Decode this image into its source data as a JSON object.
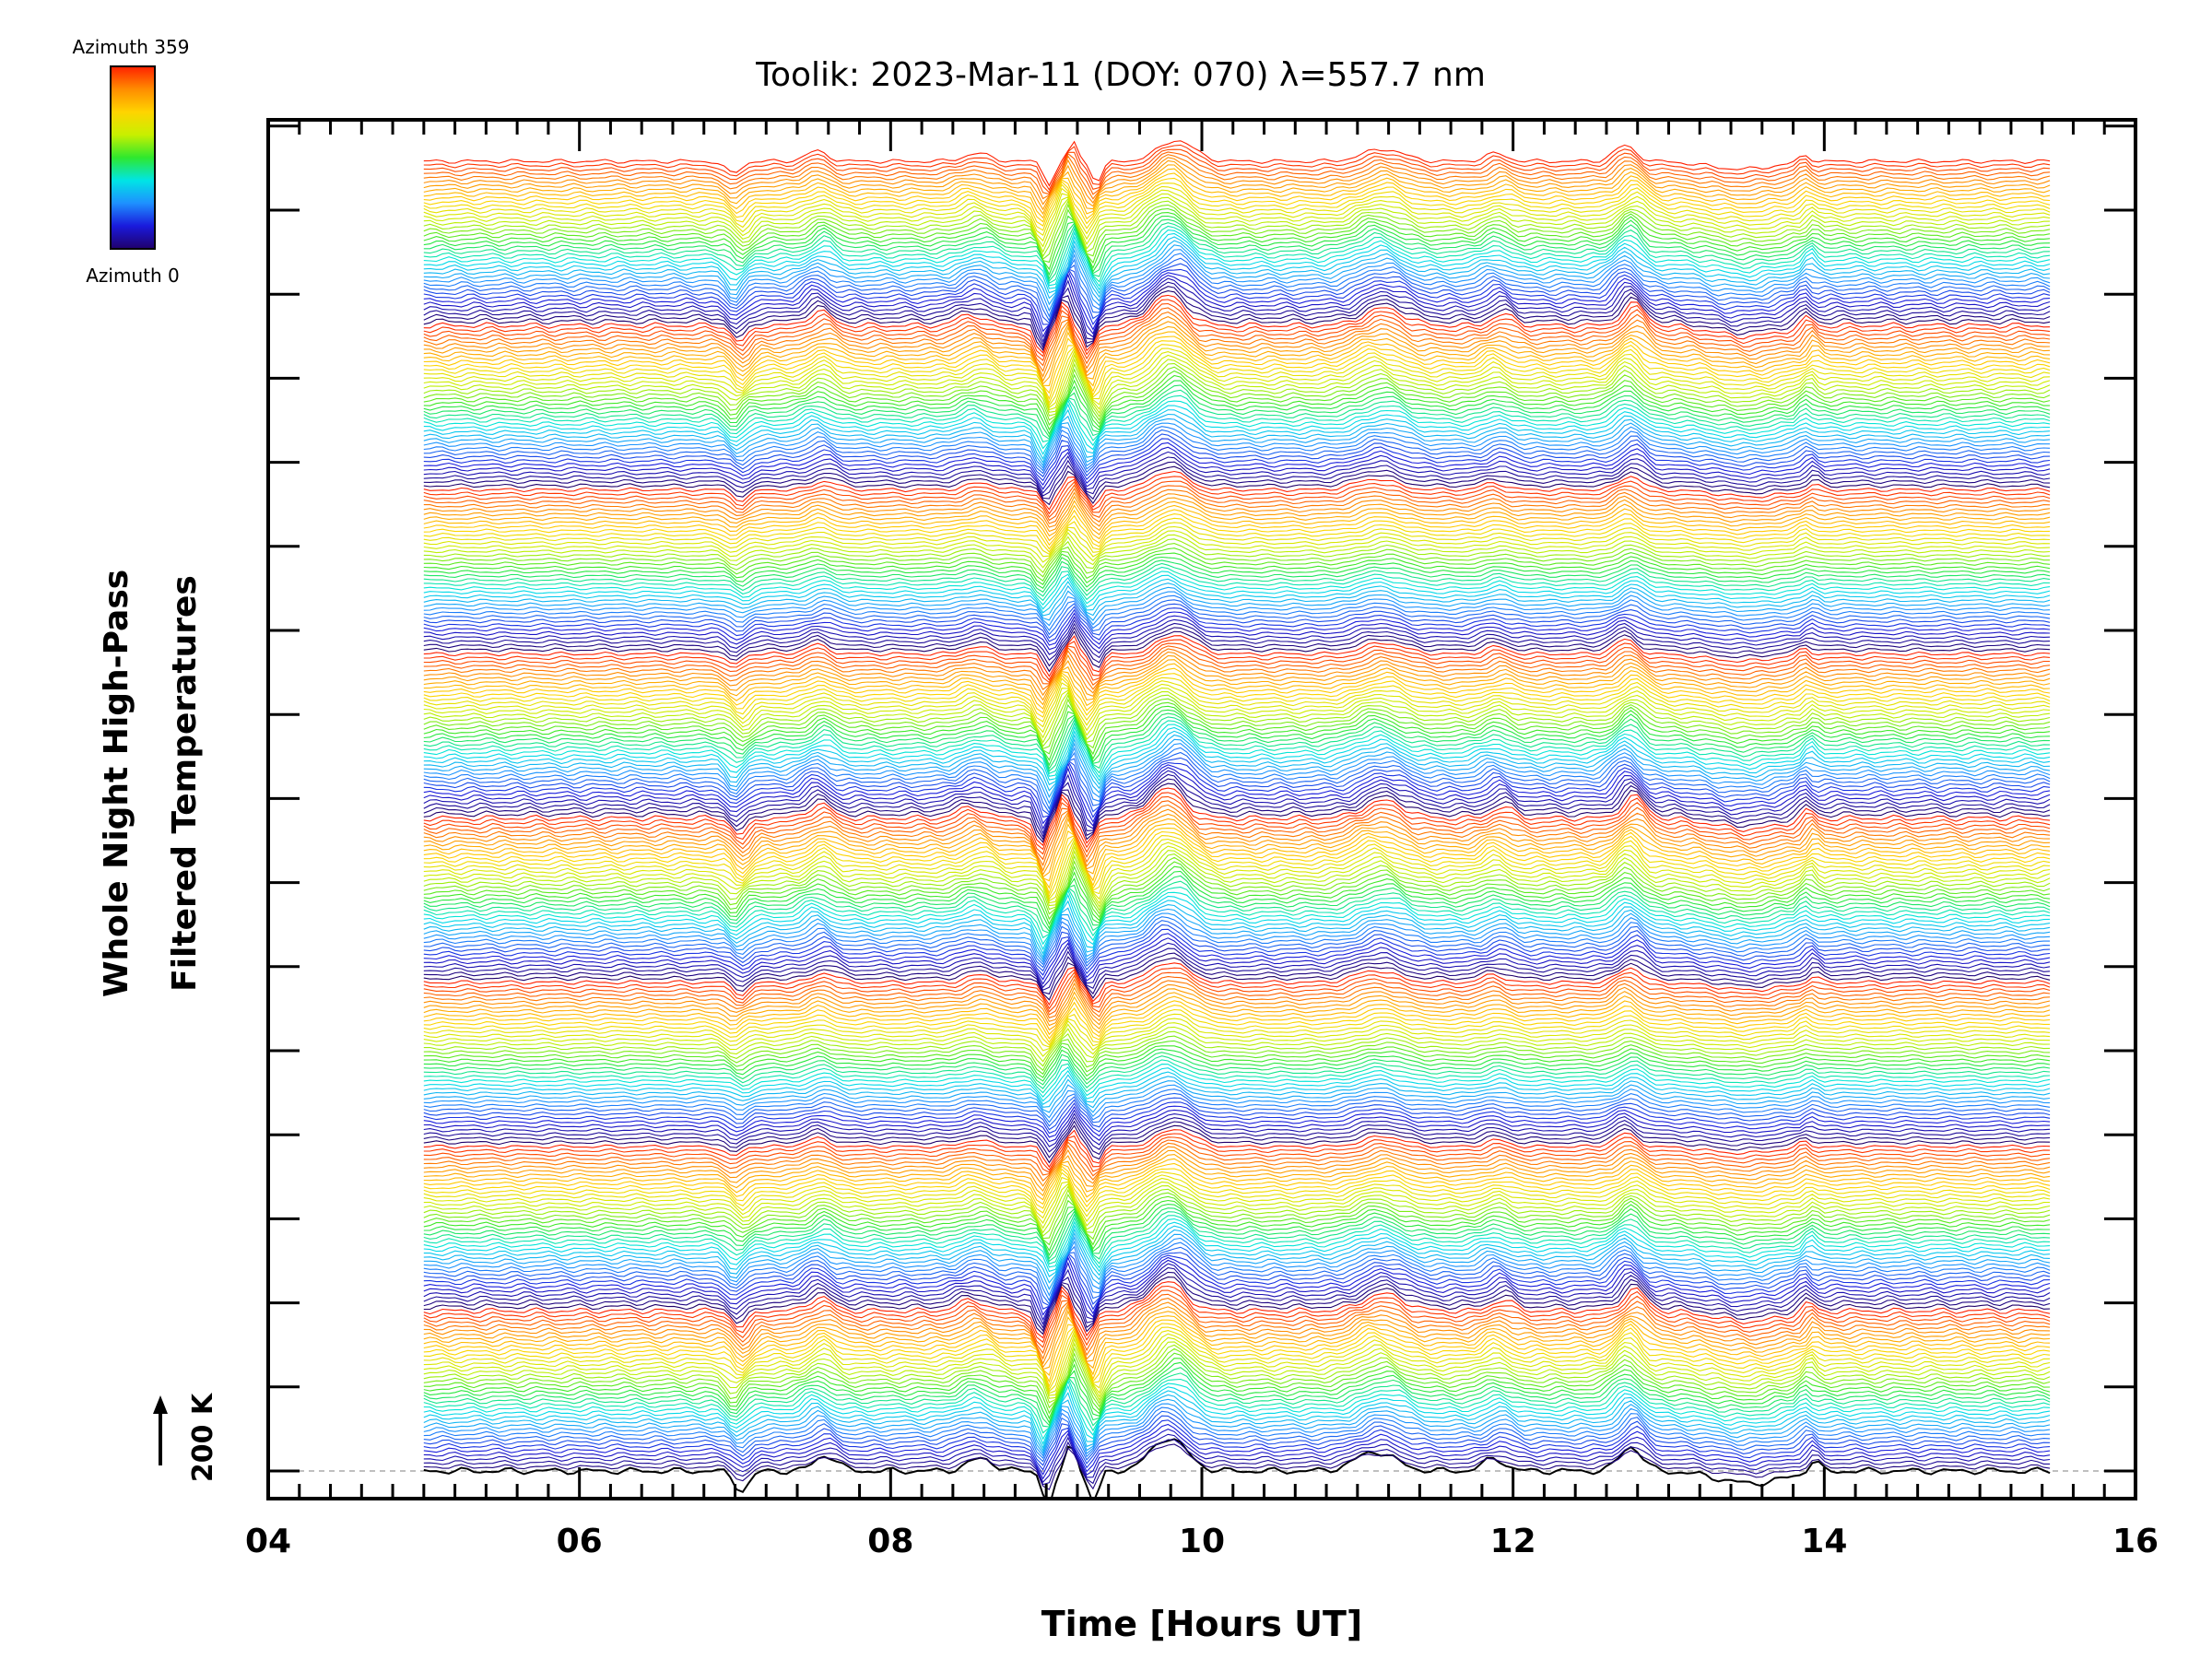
{
  "chart_data": {
    "type": "line",
    "title": "Toolik: 2023-Mar-11 (DOY: 070) λ=557.7 nm",
    "xlabel": "Time [Hours UT]",
    "ylabel_line1": "Whole Night High-Pass",
    "ylabel_line2": "Filtered Temperatures",
    "scale_label": "200 K",
    "xlim": [
      4,
      16
    ],
    "x_ticks": [
      "04",
      "06",
      "08",
      "10",
      "12",
      "14",
      "16"
    ],
    "data_time_range": [
      5.0,
      15.45
    ],
    "colorbar": {
      "top_label": "Azimuth 359",
      "bottom_label": "Azimuth 0",
      "colors": [
        "#20006b",
        "#1a1adc",
        "#1e90ff",
        "#00e5e5",
        "#2ee82e",
        "#c8f000",
        "#ffd400",
        "#ff8c00",
        "#ff2000"
      ]
    },
    "trace_count": 320,
    "traces_per_azimuth_cycle": 40,
    "baseline_color": "#000000",
    "baseline_guide_color": "#999999",
    "features": [
      {
        "t": 7.02,
        "amp": -0.55,
        "w": 0.07
      },
      {
        "t": 7.55,
        "amp": 0.45,
        "w": 0.1
      },
      {
        "t": 8.55,
        "amp": 0.35,
        "w": 0.12
      },
      {
        "t": 9.0,
        "amp": -1.0,
        "w": 0.05
      },
      {
        "t": 9.15,
        "amp": 0.9,
        "w": 0.04
      },
      {
        "t": 9.3,
        "amp": -0.9,
        "w": 0.05
      },
      {
        "t": 9.8,
        "amp": 0.95,
        "w": 0.16
      },
      {
        "t": 11.15,
        "amp": 0.55,
        "w": 0.18
      },
      {
        "t": 11.9,
        "amp": 0.35,
        "w": 0.1
      },
      {
        "t": 12.75,
        "amp": 0.7,
        "w": 0.1
      },
      {
        "t": 13.5,
        "amp": -0.35,
        "w": 0.3
      },
      {
        "t": 13.9,
        "amp": 0.35,
        "w": 0.05
      }
    ]
  }
}
